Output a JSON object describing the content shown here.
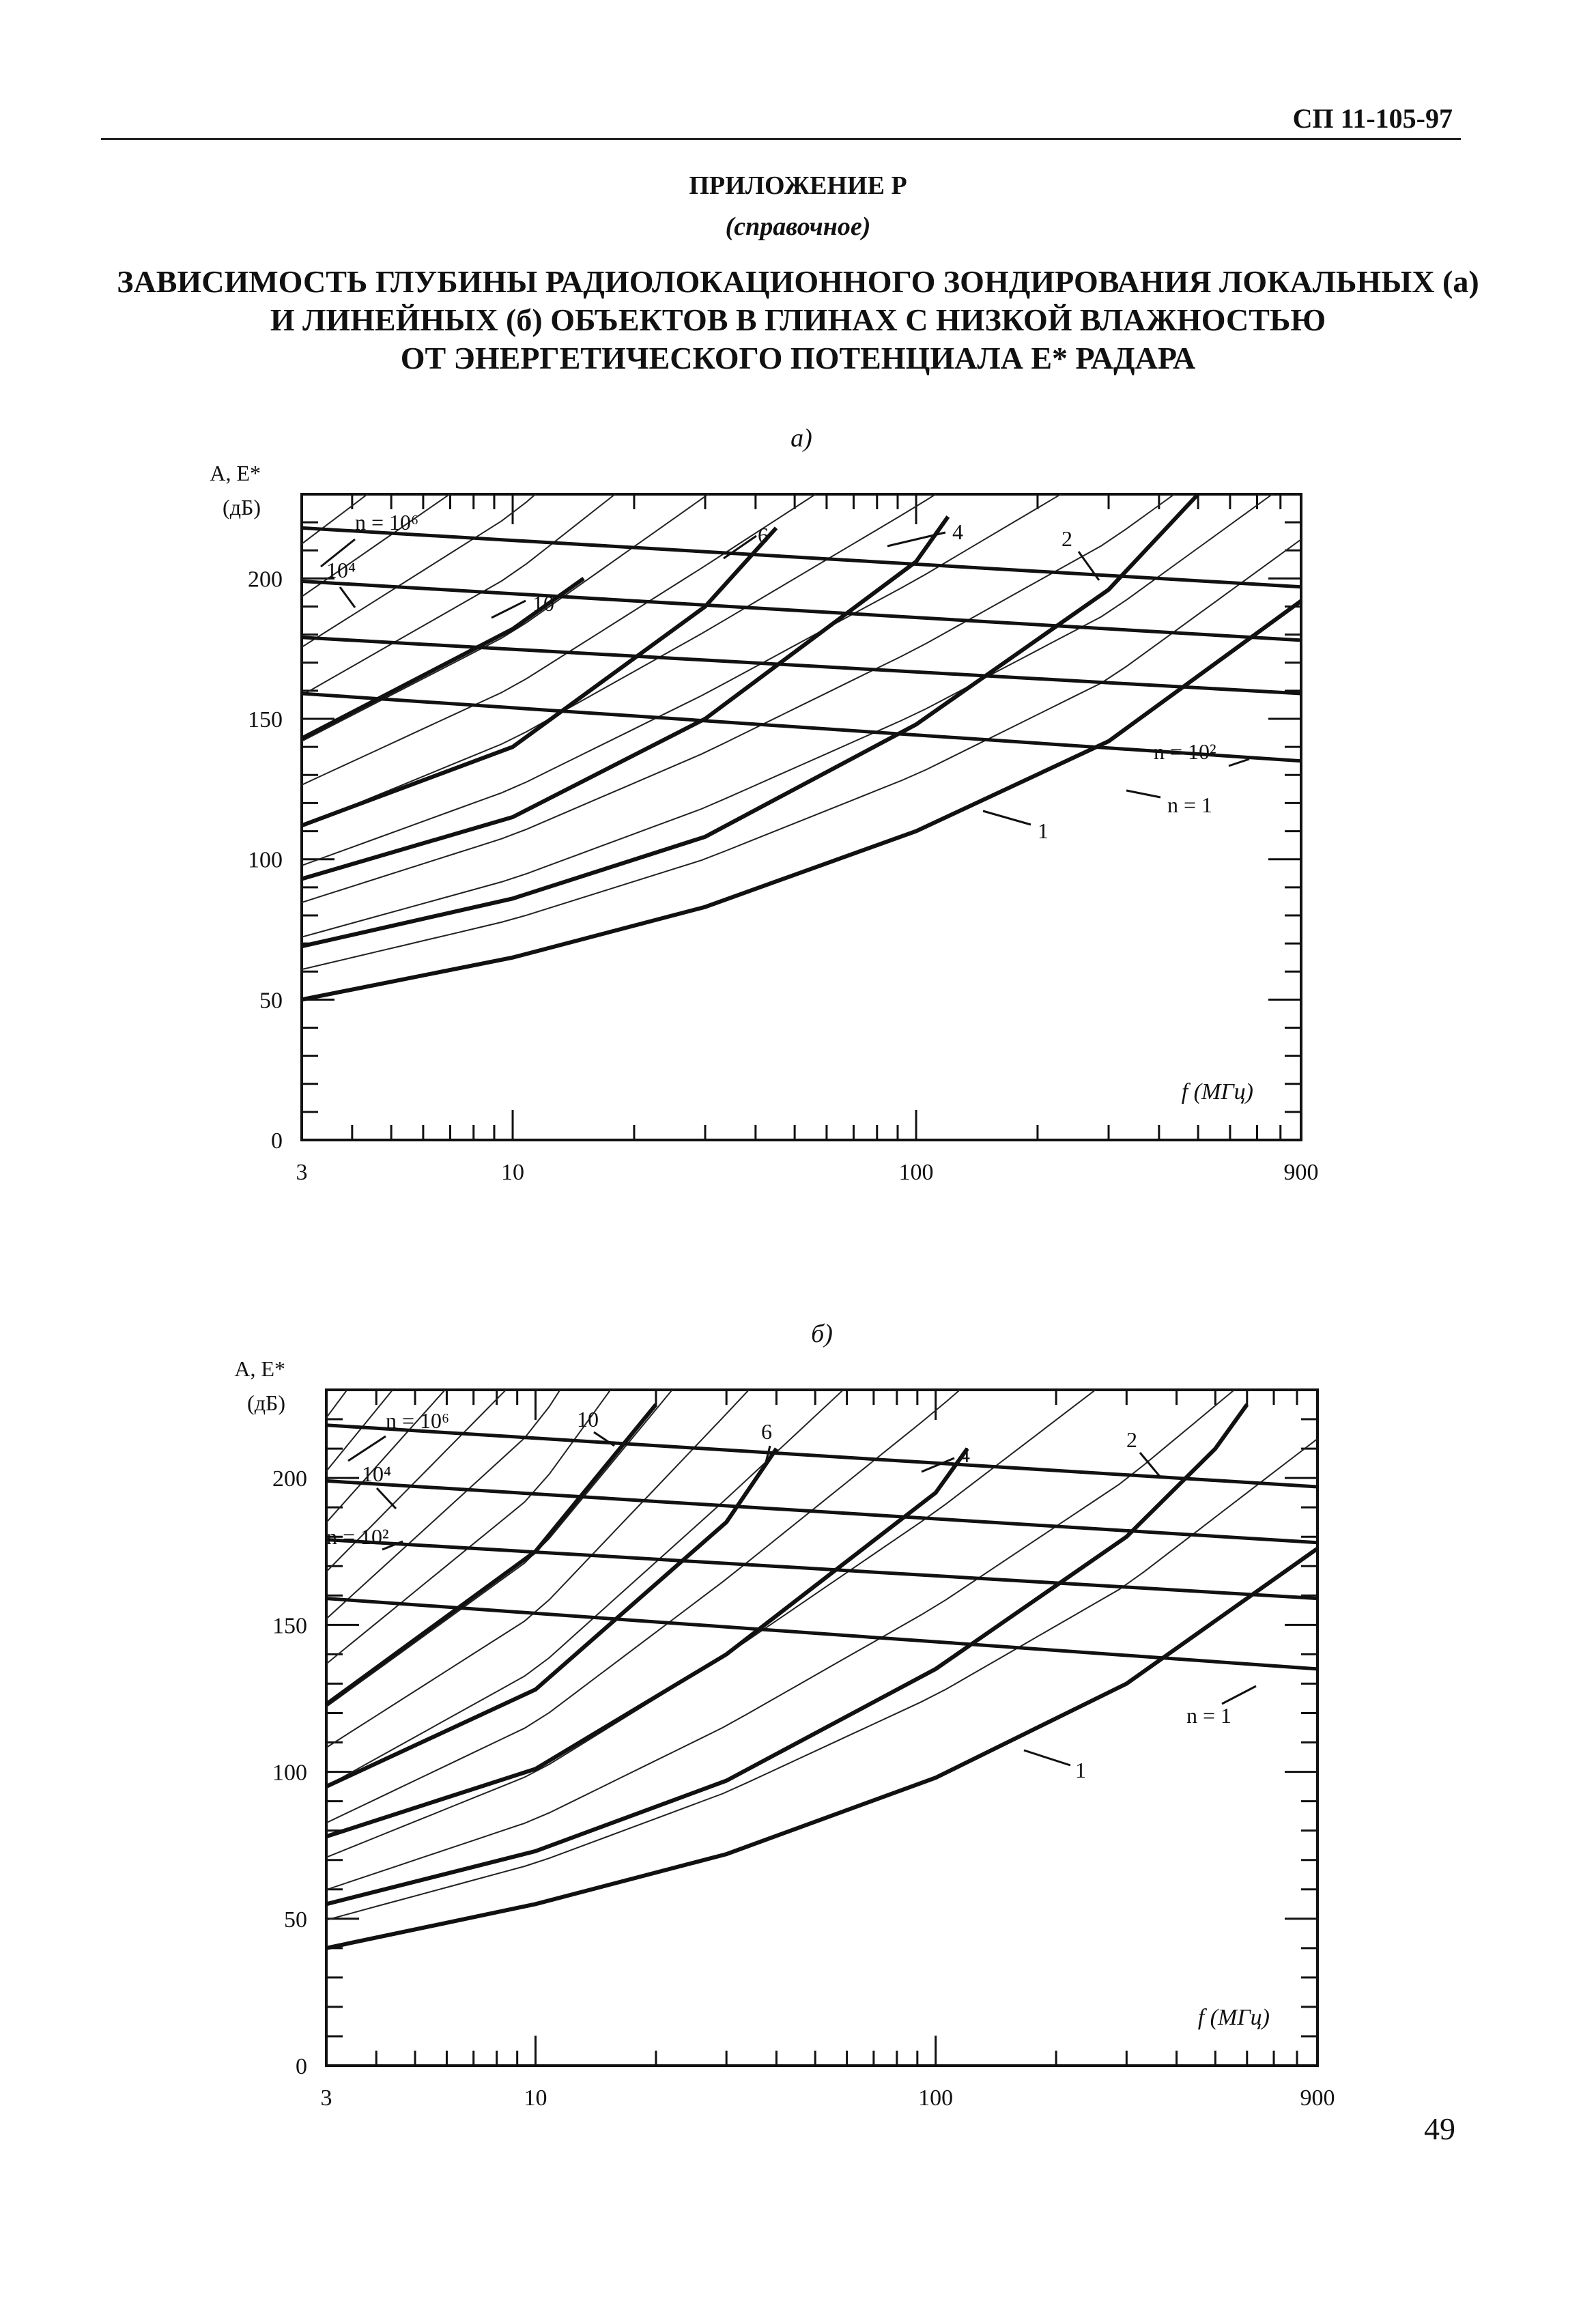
{
  "header": {
    "code": "СП 11-105-97"
  },
  "appendix": {
    "title": "ПРИЛОЖЕНИЕ Р",
    "subtitle": "(справочное)",
    "heading": [
      "ЗАВИСИМОСТЬ ГЛУБИНЫ РАДИОЛОКАЦИОННОГО ЗОНДИРОВАНИЯ ЛОКАЛЬНЫХ (а)",
      "И ЛИНЕЙНЫХ (б) ОБЪЕКТОВ В ГЛИНАХ С НИЗКОЙ ВЛАЖНОСТЬЮ",
      "ОТ ЭНЕРГЕТИЧЕСКОГО ПОТЕНЦИАЛА Е* РАДАРА"
    ]
  },
  "page_number": "49",
  "chart_data": [
    {
      "type": "line",
      "panel_label": "а)",
      "ylabel": [
        "А, Е*",
        "(дБ)"
      ],
      "xlabel": "f (МГц)",
      "x_scale": "log",
      "xlim": [
        3,
        900
      ],
      "ylim": [
        0,
        230
      ],
      "x_ticks": [
        3,
        10,
        100,
        900
      ],
      "y_ticks": [
        0,
        50,
        100,
        150,
        200
      ],
      "energy_lines": [
        {
          "label": "n = 10⁶",
          "points": [
            [
              3,
              218
            ],
            [
              900,
              197
            ]
          ]
        },
        {
          "label": "10⁴",
          "points": [
            [
              3,
              199
            ],
            [
              900,
              178
            ]
          ]
        },
        {
          "label": "n = 10²",
          "points": [
            [
              3,
              179
            ],
            [
              900,
              159
            ]
          ]
        },
        {
          "label": "n = 1",
          "points": [
            [
              3,
              159
            ],
            [
              900,
              135
            ]
          ]
        }
      ],
      "depth_curves_bold": [
        {
          "label": "1",
          "points": [
            [
              3,
              50
            ],
            [
              10,
              65
            ],
            [
              30,
              83
            ],
            [
              100,
              110
            ],
            [
              300,
              142
            ],
            [
              900,
              192
            ]
          ]
        },
        {
          "label": "2",
          "points": [
            [
              3,
              69
            ],
            [
              10,
              86
            ],
            [
              30,
              108
            ],
            [
              100,
              148
            ],
            [
              300,
              196
            ],
            [
              500,
              230
            ]
          ]
        },
        {
          "label": "4",
          "points": [
            [
              3,
              93
            ],
            [
              10,
              115
            ],
            [
              30,
              150
            ],
            [
              100,
              206
            ],
            [
              120,
              222
            ]
          ]
        },
        {
          "label": "6",
          "points": [
            [
              3,
              112
            ],
            [
              10,
              140
            ],
            [
              30,
              190
            ],
            [
              45,
              218
            ]
          ]
        },
        {
          "label": "10",
          "points": [
            [
              3,
              143
            ],
            [
              10,
              182
            ],
            [
              15,
              200
            ]
          ]
        }
      ],
      "depth_curves_thin_count": 30,
      "depth_curve_labels": [
        "1",
        "2",
        "4",
        "6",
        "10"
      ]
    },
    {
      "type": "line",
      "panel_label": "б)",
      "ylabel": [
        "А, Е*",
        "(дБ)"
      ],
      "xlabel": "f (МГц)",
      "x_scale": "log",
      "xlim": [
        3,
        900
      ],
      "ylim": [
        0,
        230
      ],
      "x_ticks": [
        3,
        10,
        100,
        900
      ],
      "y_ticks": [
        0,
        50,
        100,
        150,
        200
      ],
      "energy_lines": [
        {
          "label": "n = 10⁶",
          "points": [
            [
              3,
              218
            ],
            [
              900,
              197
            ]
          ]
        },
        {
          "label": "10⁴",
          "points": [
            [
              3,
              199
            ],
            [
              900,
              178
            ]
          ]
        },
        {
          "label": "n = 10²",
          "points": [
            [
              3,
              179
            ],
            [
              900,
              159
            ]
          ]
        },
        {
          "label": "n = 1",
          "points": [
            [
              3,
              159
            ],
            [
              900,
              135
            ]
          ]
        }
      ],
      "depth_curves_bold": [
        {
          "label": "1",
          "points": [
            [
              3,
              40
            ],
            [
              10,
              55
            ],
            [
              30,
              72
            ],
            [
              100,
              98
            ],
            [
              300,
              130
            ],
            [
              900,
              176
            ]
          ]
        },
        {
          "label": "2",
          "points": [
            [
              3,
              55
            ],
            [
              10,
              73
            ],
            [
              30,
              97
            ],
            [
              100,
              135
            ],
            [
              300,
              180
            ],
            [
              500,
              210
            ],
            [
              600,
              225
            ]
          ]
        },
        {
          "label": "4",
          "points": [
            [
              3,
              78
            ],
            [
              10,
              101
            ],
            [
              30,
              140
            ],
            [
              100,
              195
            ],
            [
              120,
              210
            ]
          ]
        },
        {
          "label": "6",
          "points": [
            [
              3,
              95
            ],
            [
              10,
              128
            ],
            [
              30,
              185
            ],
            [
              40,
              210
            ]
          ]
        },
        {
          "label": "10",
          "points": [
            [
              3,
              123
            ],
            [
              10,
              175
            ],
            [
              20,
              225
            ]
          ]
        }
      ],
      "depth_curves_thin_count": 30,
      "depth_curve_labels": [
        "1",
        "2",
        "4",
        "6",
        "10"
      ]
    }
  ]
}
